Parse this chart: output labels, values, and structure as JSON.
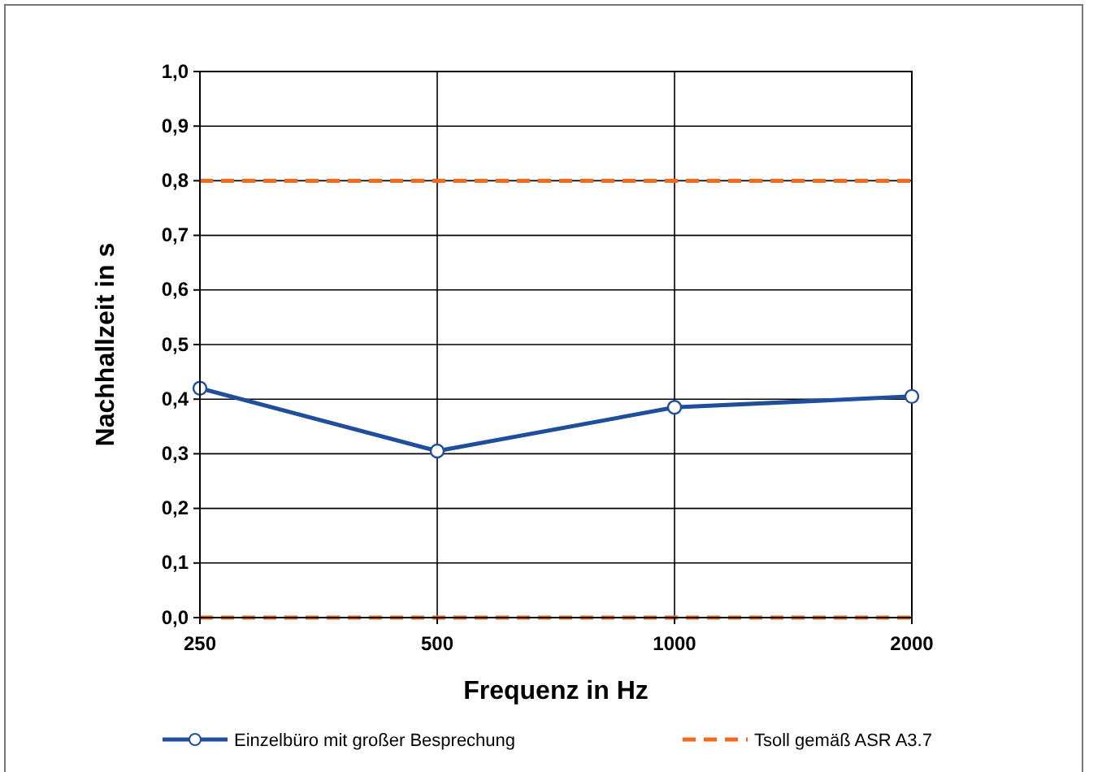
{
  "chart_data": {
    "type": "line",
    "xlabel": "Frequenz in Hz",
    "ylabel": "Nachhallzeit in s",
    "categories": [
      "250",
      "500",
      "1000",
      "2000"
    ],
    "series": [
      {
        "name": "Einzelbüro mit großer Besprechung",
        "color": "#1f4e9c",
        "values": [
          0.42,
          0.305,
          0.385,
          0.405
        ],
        "marker": "circle",
        "line_style": "solid"
      },
      {
        "name": "Tsoll gemäß ASR A3.7",
        "color": "#f26a1b",
        "values": [
          0.8,
          0.8,
          0.8,
          0.8
        ],
        "marker": "none",
        "line_style": "dashed"
      },
      {
        "color": "#f26a1b",
        "values": [
          0,
          0,
          0,
          0
        ],
        "marker": "none",
        "line_style": "dashed"
      }
    ],
    "ylim": [
      0,
      1
    ],
    "yticks": [
      {
        "value": 0,
        "label": "0,0"
      },
      {
        "value": 0.1,
        "label": "0,1"
      },
      {
        "value": 0.2,
        "label": "0,2"
      },
      {
        "value": 0.3,
        "label": "0,3"
      },
      {
        "value": 0.4,
        "label": "0,4"
      },
      {
        "value": 0.5,
        "label": "0,5"
      },
      {
        "value": 0.6,
        "label": "0,6"
      },
      {
        "value": 0.7,
        "label": "0,7"
      },
      {
        "value": 0.8,
        "label": "0,8"
      },
      {
        "value": 0.9,
        "label": "0,9"
      },
      {
        "value": 1,
        "label": "1,0"
      }
    ],
    "grid": true,
    "legend": "bottom"
  }
}
